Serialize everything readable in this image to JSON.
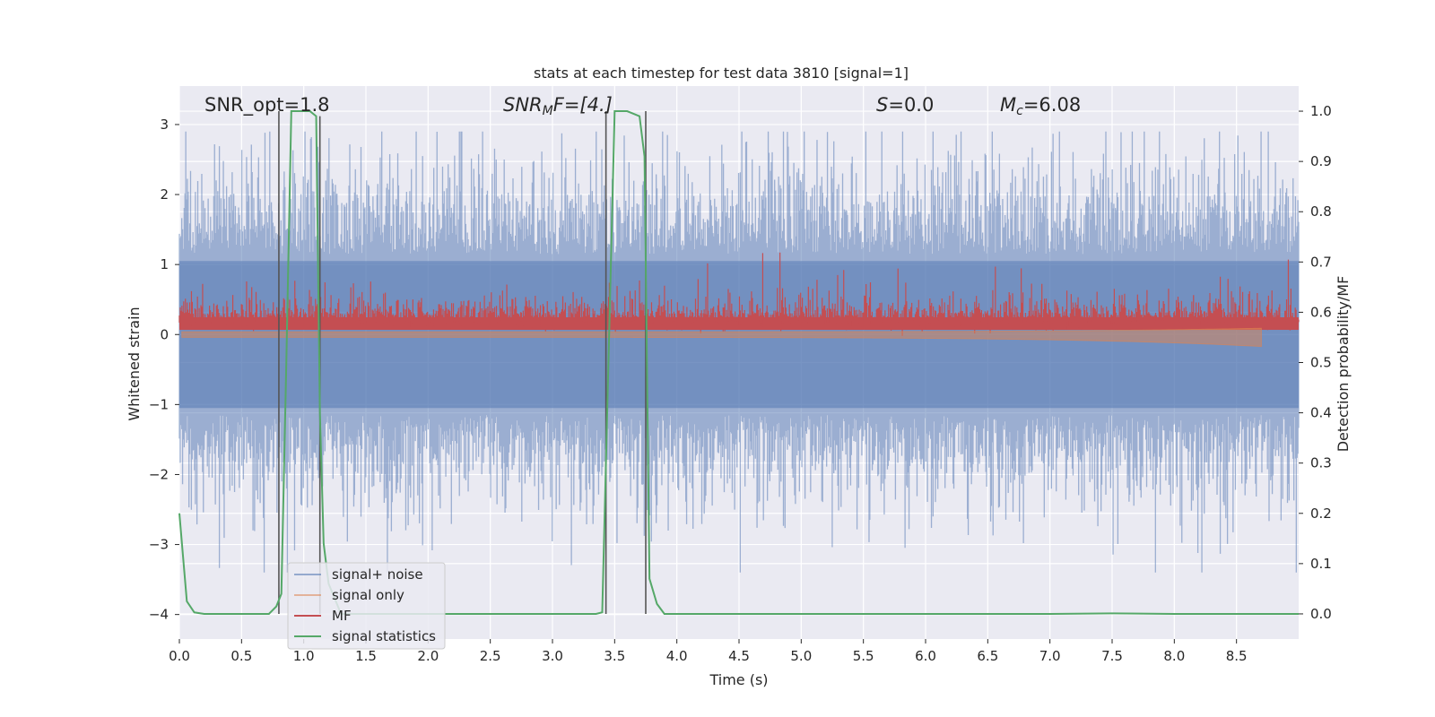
{
  "chart_data": {
    "type": "line",
    "title": "stats at each timestep for test data 3810 [signal=1]",
    "xlabel": "Time (s)",
    "ylabel": "Whitened strain",
    "ylabel_right": "Detection probability/MF",
    "xlim": [
      0.0,
      9.0
    ],
    "ylim": [
      -4.35,
      3.55
    ],
    "ylim_right": [
      -0.05,
      1.05
    ],
    "x_ticks": [
      "0.0",
      "0.5",
      "1.0",
      "1.5",
      "2.0",
      "2.5",
      "3.0",
      "3.5",
      "4.0",
      "4.5",
      "5.0",
      "5.5",
      "6.0",
      "6.5",
      "7.0",
      "7.5",
      "8.0",
      "8.5"
    ],
    "x_tick_values": [
      0.0,
      0.5,
      1.0,
      1.5,
      2.0,
      2.5,
      3.0,
      3.5,
      4.0,
      4.5,
      5.0,
      5.5,
      6.0,
      6.5,
      7.0,
      7.5,
      8.0,
      8.5
    ],
    "y_ticks": [
      "−4",
      "−3",
      "−2",
      "−1",
      "0",
      "1",
      "2",
      "3"
    ],
    "y_tick_values": [
      -4,
      -3,
      -2,
      -1,
      0,
      1,
      2,
      3
    ],
    "y_right_ticks": [
      "0.0",
      "0.1",
      "0.2",
      "0.3",
      "0.4",
      "0.5",
      "0.6",
      "0.7",
      "0.8",
      "0.9",
      "1.0"
    ],
    "y_right_tick_values": [
      0.0,
      0.1,
      0.2,
      0.3,
      0.4,
      0.5,
      0.6,
      0.7,
      0.8,
      0.9,
      1.0
    ],
    "annotations": {
      "snr_opt": "SNR_opt=1.8",
      "snr_mf_main": "SNR",
      "snr_mf_sub": "M",
      "snr_mf_rest": "F=[4.]",
      "s_main": "S",
      "s_rest": "=0.0",
      "mc_main": "M",
      "mc_sub": "c",
      "mc_rest": "=6.08"
    },
    "legend": {
      "location": "lower-left",
      "entries": [
        "signal+ noise",
        "signal only",
        "MF",
        "signal statistics"
      ]
    },
    "series": [
      {
        "name": "signal+ noise",
        "color": "#4c72b0",
        "description": "whitened noisy strain, roughly within -3.4 to 2.9"
      },
      {
        "name": "signal only",
        "color": "#dd8452",
        "description": "near 0, growing chirp toward ~8.7 s"
      },
      {
        "name": "MF",
        "color": "#c44e52",
        "axis": "right",
        "description": "matched filter output around 0.6 on right axis"
      },
      {
        "name": "signal statistics",
        "color": "#55a868",
        "axis": "right",
        "x": [
          0.0,
          0.06,
          0.12,
          0.2,
          0.5,
          0.72,
          0.78,
          0.82,
          0.86,
          0.9,
          1.0,
          1.05,
          1.1,
          1.13,
          1.16,
          1.2,
          1.3,
          1.6,
          2.5,
          3.0,
          3.35,
          3.4,
          3.45,
          3.5,
          3.6,
          3.7,
          3.74,
          3.78,
          3.84,
          3.9,
          4.5,
          6.0,
          7.0,
          7.5,
          8.0,
          9.0
        ],
        "values": [
          0.2,
          0.025,
          0.003,
          0.0,
          0.0,
          0.0,
          0.015,
          0.04,
          0.5,
          1.0,
          1.0,
          1.0,
          0.99,
          0.4,
          0.14,
          0.06,
          0.0,
          0.0,
          0.0,
          0.0,
          0.0,
          0.003,
          0.5,
          1.0,
          1.0,
          0.99,
          0.91,
          0.07,
          0.02,
          0.0,
          0.0,
          0.0,
          0.0,
          0.001,
          0.0,
          0.0
        ]
      }
    ],
    "vertical_markers": [
      {
        "x": 0.8,
        "from_right": 0.0,
        "to_right": 1.0
      },
      {
        "x": 1.13,
        "from_right": 0.0,
        "to_right": 0.99
      },
      {
        "x": 3.43,
        "from_right": 0.0,
        "to_right": 1.0
      },
      {
        "x": 3.75,
        "from_right": 0.0,
        "to_right": 1.0
      }
    ],
    "grid": true
  }
}
